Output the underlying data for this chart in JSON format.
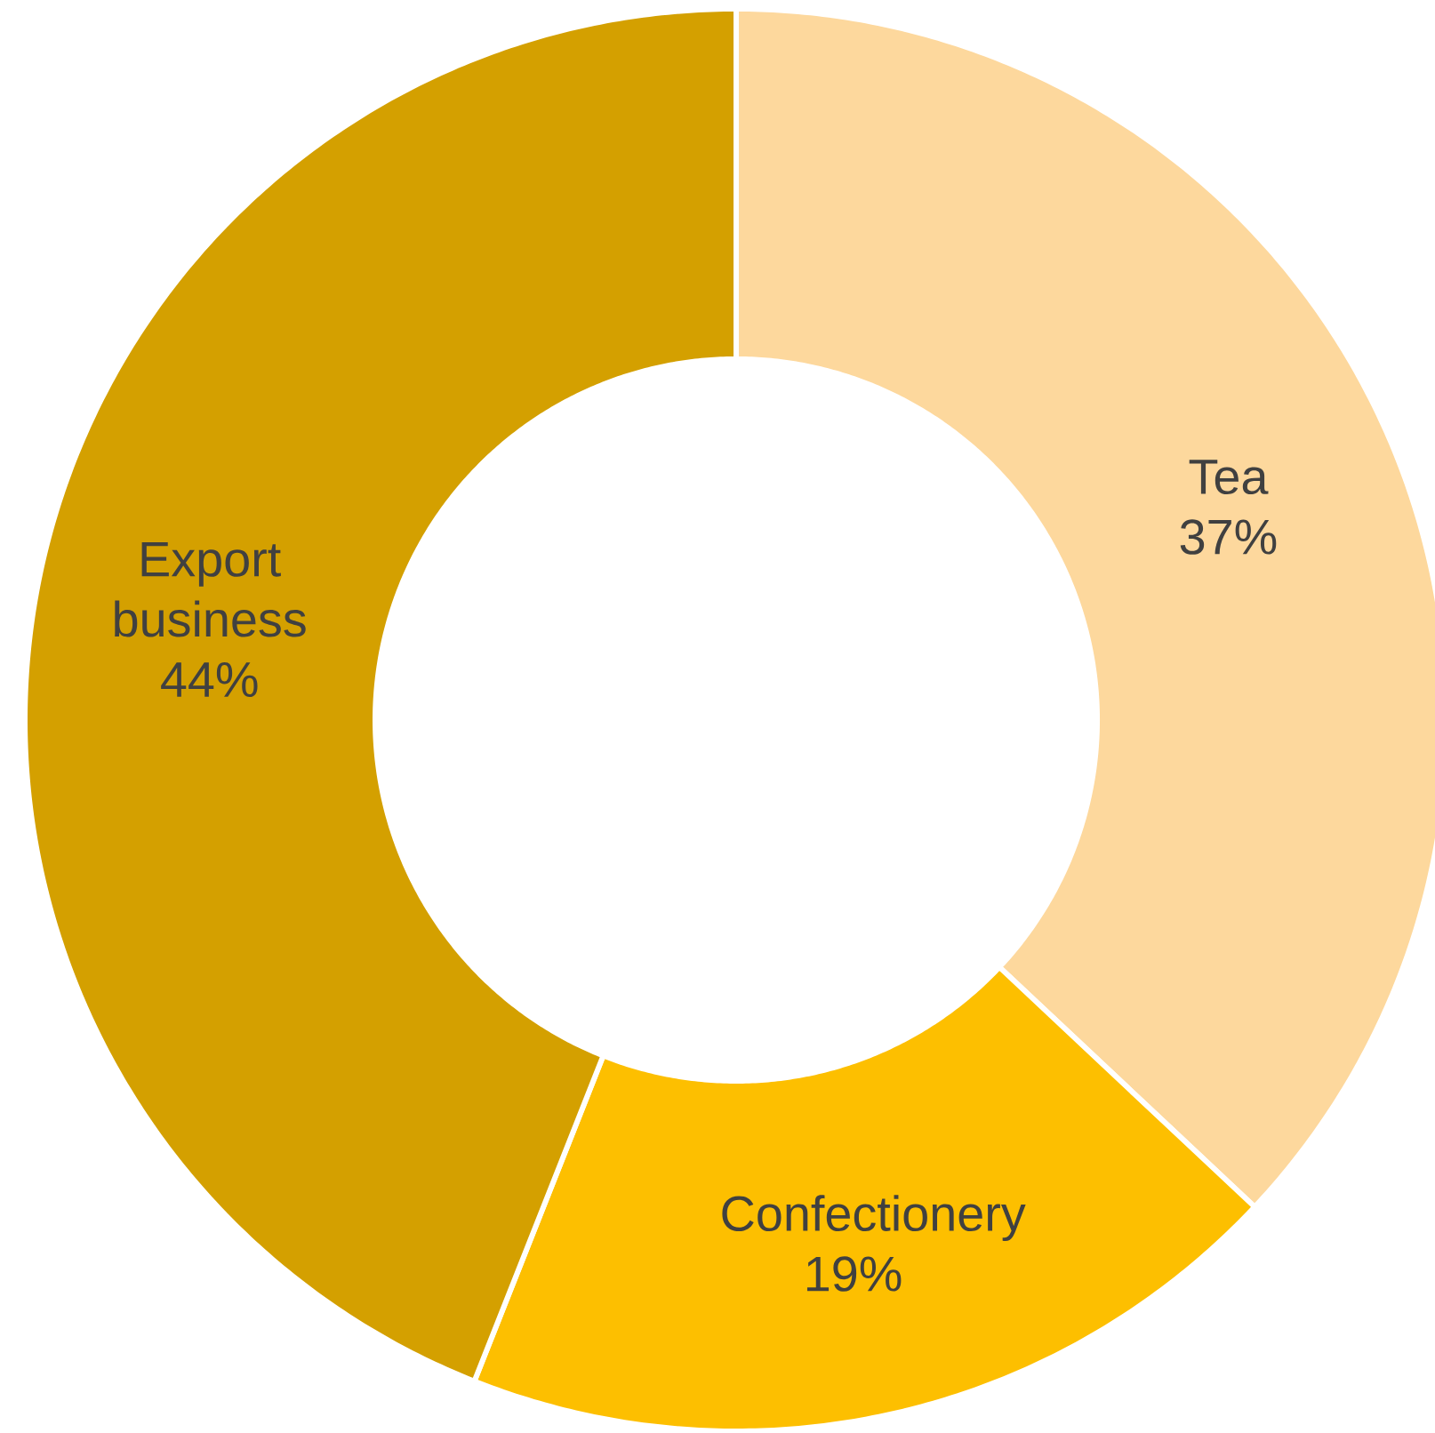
{
  "chart_data": {
    "type": "donut",
    "categories": [
      "Tea",
      "Confectionery",
      "Export business"
    ],
    "values": [
      37,
      19,
      44
    ],
    "value_labels": [
      "37%",
      "19%",
      "44%"
    ],
    "colors": [
      "#fdd89d",
      "#fdbf00",
      "#d4a000"
    ]
  }
}
